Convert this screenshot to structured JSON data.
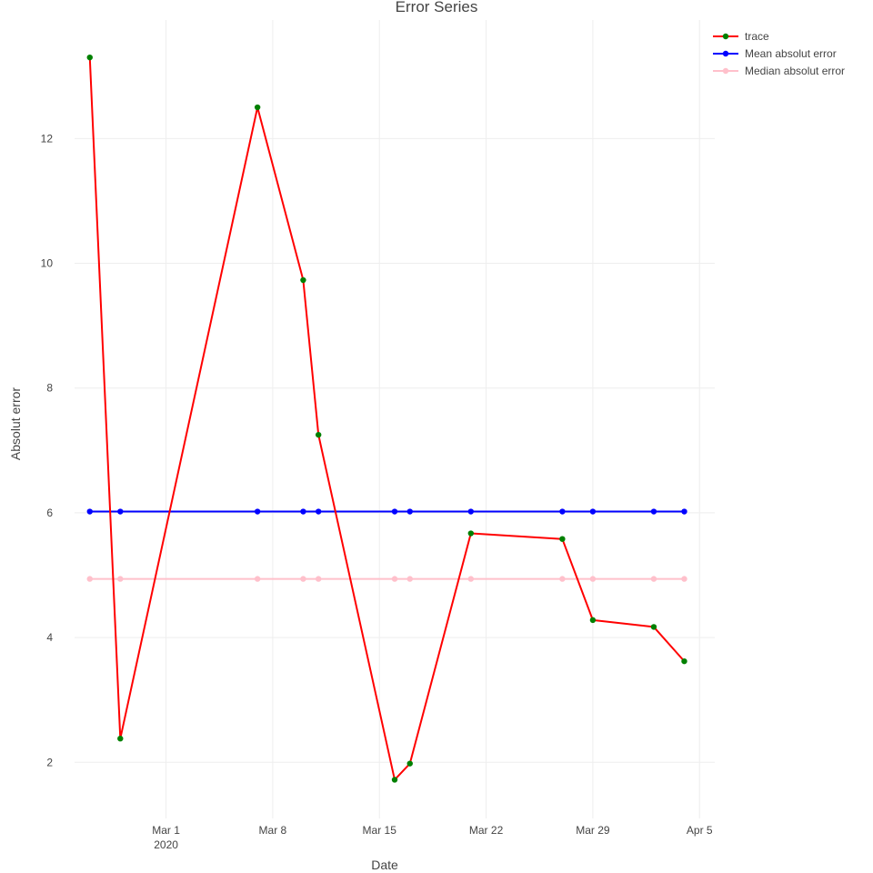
{
  "chart_data": {
    "type": "line",
    "title": "Error Series",
    "xlabel": "Date",
    "ylabel": "Absolut error",
    "xaxis": {
      "type": "date",
      "range": [
        "2020-02-24",
        "2020-04-06"
      ],
      "ticks": [
        {
          "date": "2020-03-01",
          "label": "Mar 1",
          "sublabel": "2020"
        },
        {
          "date": "2020-03-08",
          "label": "Mar 8",
          "sublabel": ""
        },
        {
          "date": "2020-03-15",
          "label": "Mar 15",
          "sublabel": ""
        },
        {
          "date": "2020-03-22",
          "label": "Mar 22",
          "sublabel": ""
        },
        {
          "date": "2020-03-29",
          "label": "Mar 29",
          "sublabel": ""
        },
        {
          "date": "2020-04-05",
          "label": "Apr 5",
          "sublabel": ""
        }
      ]
    },
    "yaxis": {
      "range": [
        1.1,
        13.9
      ],
      "ticks": [
        2,
        4,
        6,
        8,
        10,
        12
      ]
    },
    "grid": true,
    "legend_position": "top-right",
    "x": [
      "2020-02-25",
      "2020-02-27",
      "2020-03-07",
      "2020-03-10",
      "2020-03-11",
      "2020-03-16",
      "2020-03-17",
      "2020-03-21",
      "2020-03-27",
      "2020-03-29",
      "2020-04-02",
      "2020-04-04"
    ],
    "series": [
      {
        "name": "trace",
        "line_color": "#ff0000",
        "marker_color": "#008000",
        "values": [
          13.3,
          2.38,
          12.5,
          9.73,
          7.25,
          1.72,
          1.98,
          5.67,
          5.58,
          4.28,
          4.17,
          3.62
        ]
      },
      {
        "name": "Mean absolut error",
        "line_color": "#0000ff",
        "marker_color": "#0000ff",
        "values": [
          6.02,
          6.02,
          6.02,
          6.02,
          6.02,
          6.02,
          6.02,
          6.02,
          6.02,
          6.02,
          6.02,
          6.02
        ]
      },
      {
        "name": "Median absolut error",
        "line_color": "#ffc0cb",
        "marker_color": "#ffc0cb",
        "values": [
          4.94,
          4.94,
          4.94,
          4.94,
          4.94,
          4.94,
          4.94,
          4.94,
          4.94,
          4.94,
          4.94,
          4.94
        ]
      }
    ]
  }
}
